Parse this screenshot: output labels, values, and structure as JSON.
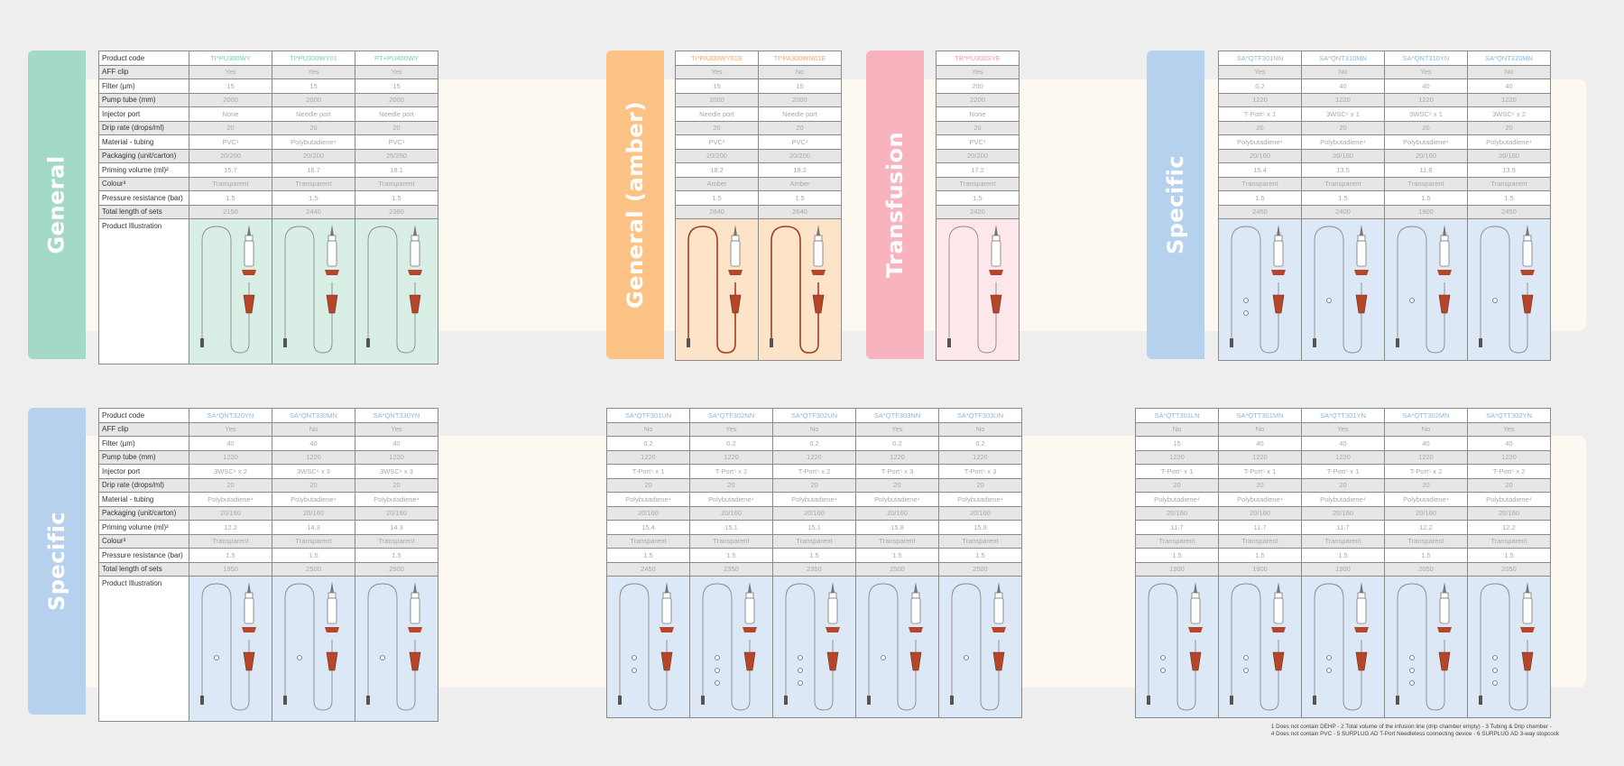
{
  "colors": {
    "general": "#a3d9c5",
    "general_light": "#d9efe6",
    "general_code": "#72cfb3",
    "amber": "#fdc386",
    "amber_light": "#fde4c9",
    "amber_code": "#f6a669",
    "transfusion": "#f8b3bf",
    "transfusion_light": "#fde7eb",
    "transfusion_code": "#f196ab",
    "specific": "#b5d1ee",
    "specific_light": "#dce8f6",
    "specific_code": "#8db6df",
    "clamp": "#b5462a",
    "amber_tube": "#a3401f"
  },
  "row_labels": [
    "Product code",
    "AFF clip",
    "Filter (µm)",
    "Pump tube (mm)",
    "Injector port",
    "Drip rate (drops/ml)",
    "Material - tubing",
    "Packaging (unit/carton)",
    "Priming volume (ml)²",
    "Colour³",
    "Pressure resistance (bar)",
    "Total length of sets",
    "Product Illustration"
  ],
  "tabs": [
    {
      "label": "General",
      "group": "general"
    },
    {
      "label": "General (amber)",
      "group": "amber"
    },
    {
      "label": "Transfusion",
      "group": "transfusion"
    },
    {
      "label": "Specific",
      "group": "specific"
    },
    {
      "label": "Specific",
      "group": "specific"
    }
  ],
  "tables": [
    {
      "group": "general",
      "labels": true,
      "columns": [
        {
          "code": "TI*PU300WY",
          "values": [
            "Yes",
            "15",
            "2000",
            "None",
            "20",
            "PVC¹",
            "20/200",
            "15.7",
            "Transparent",
            "1.5",
            "2150"
          ]
        },
        {
          "code": "TI*PU300WY01",
          "values": [
            "Yes",
            "15",
            "2000",
            "Needle port",
            "20",
            "Polybutadiene⁴",
            "20/200",
            "16.7",
            "Transparent",
            "1.5",
            "2440"
          ]
        },
        {
          "code": "PT+PU400WY",
          "values": [
            "Yes",
            "15",
            "2000",
            "Needle port",
            "20",
            "PVC¹",
            "25/250",
            "18.1",
            "Transparent",
            "1.5",
            "2380"
          ]
        }
      ]
    },
    {
      "group": "amber",
      "labels": false,
      "columns": [
        {
          "code": "TI*PA300WY01E",
          "values": [
            "Yes",
            "15",
            "2000",
            "Needle port",
            "20",
            "PVC¹",
            "20/200",
            "18.2",
            "Amber",
            "1.5",
            "2640"
          ]
        },
        {
          "code": "TI*PA300WN01E",
          "values": [
            "No",
            "15",
            "2000",
            "Needle port",
            "20",
            "PVC¹",
            "20/200",
            "18.2",
            "Amber",
            "1.5",
            "2640"
          ]
        }
      ]
    },
    {
      "group": "transfusion",
      "labels": false,
      "columns": [
        {
          "code": "TB*PU300SYE",
          "values": [
            "Yes",
            "200",
            "2200",
            "None",
            "20",
            "PVC¹",
            "20/200",
            "17.2",
            "Transparent",
            "1.5",
            "2420"
          ]
        }
      ]
    },
    {
      "group": "specific",
      "labels": false,
      "columns": [
        {
          "code": "SA*QTF301NN",
          "values": [
            "Yes",
            "0.2",
            "1220",
            "T-Port⁵ x 1",
            "20",
            "Polybutadiene⁴",
            "20/160",
            "15.4",
            "Transparent",
            "1.5",
            "2450"
          ]
        },
        {
          "code": "SA*QNT310MN",
          "values": [
            "No",
            "40",
            "1220",
            "3WSC⁶ x 1",
            "20",
            "Polybutadiene⁴",
            "20/160",
            "13.5",
            "Transparent",
            "1.5",
            "2400"
          ]
        },
        {
          "code": "SA*QNT310YN",
          "values": [
            "Yes",
            "40",
            "1220",
            "3WSC⁶ x 1",
            "20",
            "Polybutadiene⁴",
            "20/160",
            "11.8",
            "Transparent",
            "1.5",
            "1900"
          ]
        },
        {
          "code": "SA*QNT320MN",
          "values": [
            "No",
            "40",
            "1220",
            "3WSC⁶ x 2",
            "20",
            "Polybutadiene⁴",
            "20/160",
            "13.9",
            "Transparent",
            "1.5",
            "2450"
          ]
        }
      ]
    },
    {
      "group": "specific",
      "labels": true,
      "columns": [
        {
          "code": "SA*QNT320YN",
          "values": [
            "Yes",
            "40",
            "1220",
            "3WSC⁶ x 2",
            "20",
            "Polybutadiene⁴",
            "20/160",
            "12.2",
            "Transparent",
            "1.5",
            "1950"
          ]
        },
        {
          "code": "SA*QNT330MN",
          "values": [
            "No",
            "40",
            "1220",
            "3WSC⁶ x 3",
            "20",
            "Polybutadiene⁴",
            "20/160",
            "14.3",
            "Transparent",
            "1.5",
            "2500"
          ]
        },
        {
          "code": "SA*QNT330YN",
          "values": [
            "Yes",
            "40",
            "1220",
            "3WSC⁶ x 3",
            "20",
            "Polybutadiene⁴",
            "20/160",
            "14.3",
            "Transparent",
            "1.5",
            "2500"
          ]
        }
      ]
    },
    {
      "group": "specific",
      "labels": false,
      "columns": [
        {
          "code": "SA*QTF301UN",
          "values": [
            "No",
            "0.2",
            "1220",
            "T-Port⁵ x 1",
            "20",
            "Polybutadiene⁴",
            "20/160",
            "15.4",
            "Transparent",
            "1.5",
            "2450"
          ]
        },
        {
          "code": "SA*QTF302NN",
          "values": [
            "Yes",
            "0.2",
            "1220",
            "T-Port⁵ x 2",
            "20",
            "Polybutadiene⁴",
            "20/160",
            "15.1",
            "Transparent",
            "1.5",
            "2350"
          ]
        },
        {
          "code": "SA*QTF302UN",
          "values": [
            "No",
            "0.2",
            "1220",
            "T-Port⁵ x 2",
            "20",
            "Polybutadiene⁴",
            "20/160",
            "15.1",
            "Transparent",
            "1.5",
            "2350"
          ]
        },
        {
          "code": "SA*QTF303NN",
          "values": [
            "Yes",
            "0.2",
            "1220",
            "T-Port⁵ x 3",
            "20",
            "Polybutadiene⁴",
            "20/160",
            "15.8",
            "Transparent",
            "1.5",
            "2500"
          ]
        },
        {
          "code": "SA*QTF303UN",
          "values": [
            "No",
            "0.2",
            "1220",
            "T-Port⁵ x 3",
            "20",
            "Polybutadiene⁴",
            "20/160",
            "15.8",
            "Transparent",
            "1.5",
            "2500"
          ]
        }
      ]
    },
    {
      "group": "specific",
      "labels": false,
      "columns": [
        {
          "code": "SA*QTT301LN",
          "values": [
            "No",
            "15",
            "1220",
            "T-Port⁵ x 1",
            "20",
            "Polybutadiene⁴",
            "20/160",
            "11.7",
            "Transparent",
            "1.5",
            "1900"
          ]
        },
        {
          "code": "SA*QTT301MN",
          "values": [
            "No",
            "40",
            "1220",
            "T-Port⁵ x 1",
            "20",
            "Polybutadiene⁴",
            "20/160",
            "11.7",
            "Transparent",
            "1.5",
            "1900"
          ]
        },
        {
          "code": "SA*QTT301YN",
          "values": [
            "Yes",
            "40",
            "1220",
            "T-Port⁵ x 1",
            "20",
            "Polybutadiene⁴",
            "20/160",
            "11.7",
            "Transparent",
            "1.5",
            "1900"
          ]
        },
        {
          "code": "SA*QTT302MN",
          "values": [
            "No",
            "40",
            "1220",
            "T-Port⁵ x 2",
            "20",
            "Polybutadiene⁴",
            "20/160",
            "12.2",
            "Transparent",
            "1.5",
            "2050"
          ]
        },
        {
          "code": "SA*QTT302YN",
          "values": [
            "Yes",
            "40",
            "1220",
            "T-Port⁵ x 2",
            "20",
            "Polybutadiene⁴",
            "20/160",
            "12.2",
            "Transparent",
            "1.5",
            "2050"
          ]
        }
      ]
    }
  ],
  "footnotes": {
    "line1": "1 Does not contain DEHP - 2 Total volume of the infusion line (drip chamber empty) - 3 Tubing & Drip chamber -",
    "line2": "4 Does not contain PVC - 5 SURPLUG AD T-Port Needleless connecting device - 6 SURPLUG AD 3-way stopcock"
  }
}
